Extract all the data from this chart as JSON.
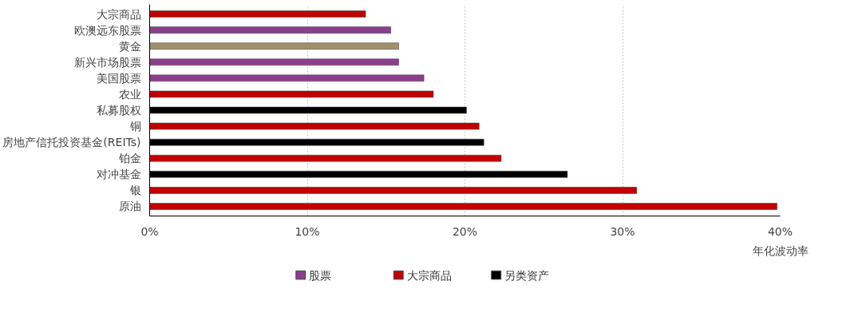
{
  "chart_data": {
    "type": "bar",
    "orientation": "horizontal",
    "xlabel": "年化波动率",
    "categories": [
      "大宗商品",
      "欧澳远东股票",
      "黄金",
      "新兴市场股票",
      "美国股票",
      "农业",
      "私募股权",
      "铜",
      "房地产信托投资基金(REITs)",
      "铂金",
      "对冲基金",
      "银",
      "原油"
    ],
    "series": [
      {
        "name": "股票",
        "color": "#8b3f8b",
        "values": [
          null,
          15.3,
          null,
          15.8,
          17.4,
          null,
          null,
          null,
          null,
          null,
          null,
          null,
          null
        ]
      },
      {
        "name": "大宗商品",
        "color": "#c00000",
        "values": [
          13.7,
          null,
          null,
          null,
          null,
          18.0,
          null,
          20.9,
          null,
          22.3,
          null,
          30.9,
          39.8
        ]
      },
      {
        "name": "另类资产",
        "color": "#000000",
        "values": [
          null,
          null,
          null,
          null,
          null,
          null,
          20.1,
          null,
          21.2,
          null,
          26.5,
          null,
          null
        ]
      },
      {
        "color": "#a08f6a",
        "values": [
          null,
          null,
          15.8,
          null,
          null,
          null,
          null,
          null,
          null,
          null,
          null,
          null,
          null
        ]
      }
    ],
    "xlim": [
      0,
      40
    ],
    "xticks": [
      {
        "value": 0,
        "label": "0%"
      },
      {
        "value": 10,
        "label": "10%"
      },
      {
        "value": 20,
        "label": "20%"
      },
      {
        "value": 30,
        "label": "30%"
      },
      {
        "value": 40,
        "label": "40%"
      }
    ],
    "grid": "x",
    "legend": "bottom"
  }
}
